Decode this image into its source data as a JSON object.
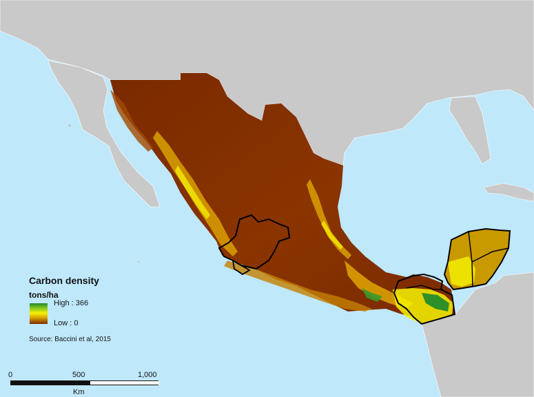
{
  "map": {
    "colors": {
      "ocean": "#bfe8fb",
      "land_other": "#c9c9c9",
      "carbon_low": "#7a2a00",
      "carbon_mid": "#f6f200",
      "carbon_high": "#1f8a2b",
      "boundary": "#000000"
    }
  },
  "legend": {
    "title": "Carbon density",
    "unit": "tons/ha",
    "high_label": "High : 366",
    "low_label": "Low : 0",
    "source": "Source: Baccini et al, 2015"
  },
  "scalebar": {
    "ticks": [
      "0",
      "500",
      "1,000"
    ],
    "unit": "Km"
  }
}
